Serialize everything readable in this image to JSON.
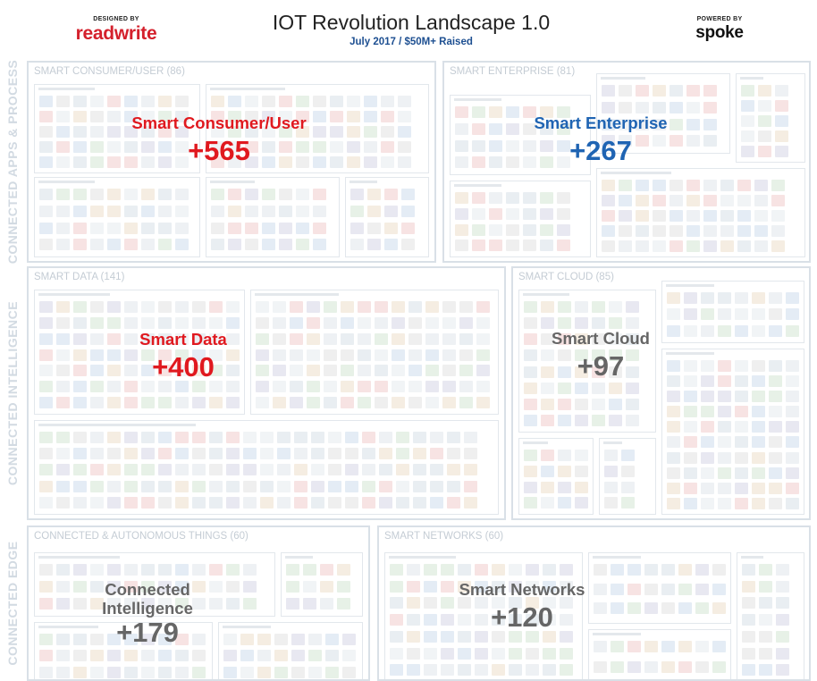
{
  "header": {
    "title": "IOT Revolution Landscape 1.0",
    "subtitle": "July 2017 / $50M+ Raised",
    "designed_by_label": "DESIGNED BY",
    "designed_by_logo": "readwrite",
    "powered_by_label": "POWERED BY",
    "powered_by_logo": "spoke"
  },
  "side_labels": {
    "apps": "CONNECTED APPS & PROCESS",
    "intelligence": "CONNECTED INTELLIGENCE",
    "edge": "CONNECTED EDGE"
  },
  "sections": {
    "consumer": {
      "title": "SMART CONSUMER/USER (86)",
      "label": "Smart Consumer/User",
      "count": "+565",
      "color": "#e0191f"
    },
    "enterprise": {
      "title": "SMART ENTERPRISE (81)",
      "label": "Smart Enterprise",
      "count": "+267",
      "color": "#1f64b3"
    },
    "data": {
      "title": "SMART DATA (141)",
      "label": "Smart Data",
      "count": "+400",
      "color": "#e0191f"
    },
    "cloud": {
      "title": "SMART CLOUD (85)",
      "label": "Smart Cloud",
      "count": "+97",
      "color": "#666666"
    },
    "things": {
      "title": "CONNECTED & AUTONOMOUS THINGS (60)",
      "label": "Connected Intelligence",
      "count": "+179",
      "color": "#666666"
    },
    "networks": {
      "title": "SMART NETWORKS (60)",
      "label": "Smart Networks",
      "count": "+120",
      "color": "#666666"
    }
  }
}
